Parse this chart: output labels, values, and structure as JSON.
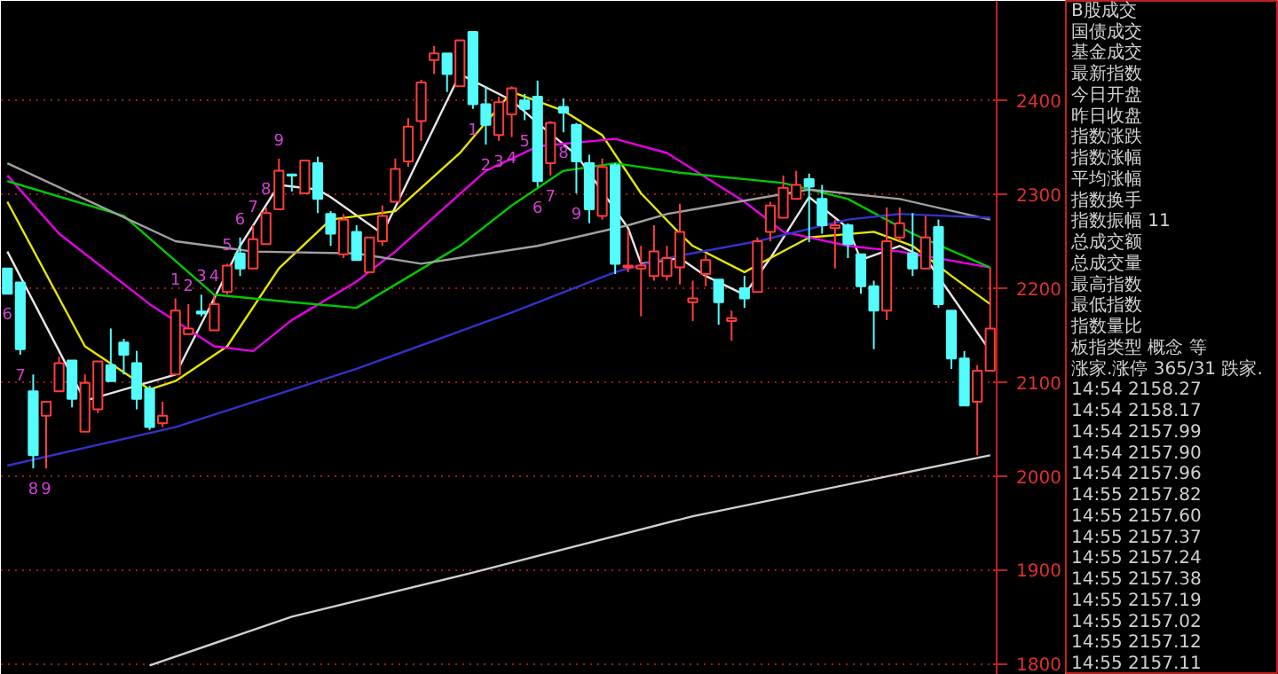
{
  "chart_data": [
    {
      "type": "candlestick",
      "categories": [
        null,
        null,
        null,
        null,
        null,
        null,
        null,
        null,
        null,
        null,
        null,
        null,
        null,
        null,
        null,
        null,
        null,
        null,
        null,
        null,
        null,
        null,
        null,
        null,
        null,
        null,
        null,
        null,
        null,
        null,
        null,
        null,
        null,
        null,
        null,
        null,
        null,
        null,
        null,
        null,
        null,
        null,
        null,
        null,
        null,
        null,
        null,
        null,
        null,
        null,
        null,
        null,
        null,
        null,
        null,
        null,
        null,
        null,
        null,
        null,
        null,
        null,
        null,
        null,
        null,
        null,
        null,
        null,
        null,
        null,
        null,
        null,
        null,
        null,
        null,
        null,
        null
      ],
      "ohlc": [
        [
          2221,
          2221,
          2194,
          2194
        ],
        [
          2206,
          2206,
          2129,
          2135
        ],
        [
          2090,
          2108,
          2008,
          2022
        ],
        [
          2064,
          2079,
          2008,
          2079
        ],
        [
          2090,
          2127,
          2090,
          2120
        ],
        [
          2123,
          2123,
          2073,
          2082
        ],
        [
          2047,
          2108,
          2047,
          2099
        ],
        [
          2071,
          2122,
          2067,
          2122
        ],
        [
          2118,
          2157,
          2101,
          2101
        ],
        [
          2142,
          2146,
          2108,
          2129
        ],
        [
          2120,
          2133,
          2071,
          2082
        ],
        [
          2093,
          2096,
          2049,
          2052
        ],
        [
          2056,
          2079,
          2052,
          2064
        ],
        [
          2108,
          2189,
          2108,
          2176
        ],
        [
          2151,
          2183,
          2151,
          2157
        ],
        [
          2175,
          2193,
          2170,
          2173
        ],
        [
          2155,
          2193,
          2155,
          2183
        ],
        [
          2196,
          2226,
          2193,
          2224
        ],
        [
          2237,
          2254,
          2213,
          2221
        ],
        [
          2221,
          2267,
          2221,
          2252
        ],
        [
          2247,
          2286,
          2247,
          2280
        ],
        [
          2284,
          2338,
          2284,
          2325
        ],
        [
          2321,
          2322,
          2303,
          2320
        ],
        [
          2301,
          2336,
          2301,
          2336
        ],
        [
          2333,
          2340,
          2280,
          2295
        ],
        [
          2279,
          2282,
          2245,
          2258
        ],
        [
          2236,
          2279,
          2232,
          2273
        ],
        [
          2260,
          2267,
          2230,
          2230
        ],
        [
          2217,
          2254,
          2217,
          2254
        ],
        [
          2250,
          2288,
          2245,
          2277
        ],
        [
          2292,
          2338,
          2292,
          2327
        ],
        [
          2335,
          2381,
          2329,
          2372
        ],
        [
          2378,
          2422,
          2357,
          2419
        ],
        [
          2443,
          2458,
          2428,
          2450
        ],
        [
          2450,
          2450,
          2409,
          2428
        ],
        [
          2415,
          2464,
          2415,
          2464
        ],
        [
          2473,
          2473,
          2391,
          2396
        ],
        [
          2396,
          2415,
          2353,
          2374
        ],
        [
          2363,
          2404,
          2357,
          2398
        ],
        [
          2385,
          2415,
          2361,
          2413
        ],
        [
          2400,
          2407,
          2379,
          2391
        ],
        [
          2404,
          2421,
          2308,
          2314
        ],
        [
          2333,
          2378,
          2320,
          2376
        ],
        [
          2393,
          2402,
          2366,
          2387
        ],
        [
          2374,
          2376,
          2301,
          2335
        ],
        [
          2333,
          2342,
          2269,
          2284
        ],
        [
          2277,
          2338,
          2273,
          2329
        ],
        [
          2331,
          2333,
          2215,
          2226
        ],
        [
          2222,
          2262,
          2217,
          2224
        ],
        [
          2221,
          2245,
          2170,
          2224
        ],
        [
          2213,
          2267,
          2208,
          2239
        ],
        [
          2213,
          2245,
          2208,
          2232
        ],
        [
          2222,
          2290,
          2204,
          2260
        ],
        [
          2185,
          2208,
          2165,
          2189
        ],
        [
          2215,
          2236,
          2202,
          2230
        ],
        [
          2209,
          2209,
          2161,
          2185
        ],
        [
          2165,
          2176,
          2144,
          2168
        ],
        [
          2200,
          2213,
          2179,
          2189
        ],
        [
          2196,
          2254,
          2196,
          2250
        ],
        [
          2260,
          2292,
          2250,
          2288
        ],
        [
          2275,
          2320,
          2275,
          2307
        ],
        [
          2295,
          2325,
          2295,
          2310
        ],
        [
          2316,
          2322,
          2249,
          2308
        ],
        [
          2295,
          2310,
          2258,
          2267
        ],
        [
          2264,
          2273,
          2221,
          2267
        ],
        [
          2267,
          2269,
          2232,
          2247
        ],
        [
          2236,
          2236,
          2194,
          2202
        ],
        [
          2202,
          2208,
          2135,
          2176
        ],
        [
          2176,
          2286,
          2166,
          2250
        ],
        [
          2254,
          2286,
          2250,
          2269
        ],
        [
          2237,
          2280,
          2213,
          2221
        ],
        [
          2221,
          2277,
          2221,
          2254
        ],
        [
          2265,
          2273,
          2179,
          2183
        ],
        [
          2176,
          2176,
          2114,
          2125
        ],
        [
          2125,
          2133,
          2075,
          2075
        ],
        [
          2079,
          2118,
          2022,
          2112
        ],
        [
          2112,
          2222,
          2112,
          2157
        ]
      ],
      "colors": [
        "#54fcfc",
        "#54fcfc",
        "#54fcfc",
        "#ff3c3c",
        "#ff3c3c",
        "#54fcfc",
        "#ff3c3c",
        "#ff3c3c",
        "#54fcfc",
        "#54fcfc",
        "#54fcfc",
        "#54fcfc",
        "#ff3c3c",
        "#ff3c3c",
        "#ff3c3c",
        "#54fcfc",
        "#ff3c3c",
        "#ff3c3c",
        "#54fcfc",
        "#ff3c3c",
        "#ff3c3c",
        "#ff3c3c",
        "#54fcfc",
        "#ff3c3c",
        "#54fcfc",
        "#54fcfc",
        "#ff3c3c",
        "#54fcfc",
        "#ff3c3c",
        "#ff3c3c",
        "#ff3c3c",
        "#ff3c3c",
        "#ff3c3c",
        "#ff3c3c",
        "#54fcfc",
        "#ff3c3c",
        "#54fcfc",
        "#54fcfc",
        "#ff3c3c",
        "#ff3c3c",
        "#54fcfc",
        "#54fcfc",
        "#ff3c3c",
        "#54fcfc",
        "#54fcfc",
        "#54fcfc",
        "#ff3c3c",
        "#54fcfc",
        "#ff3c3c",
        "#ff3c3c",
        "#ff3c3c",
        "#ff3c3c",
        "#ff3c3c",
        "#ff3c3c",
        "#ff3c3c",
        "#54fcfc",
        "#ff3c3c",
        "#54fcfc",
        "#ff3c3c",
        "#ff3c3c",
        "#ff3c3c",
        "#ff3c3c",
        "#54fcfc",
        "#54fcfc",
        "#ff3c3c",
        "#54fcfc",
        "#54fcfc",
        "#54fcfc",
        "#ff3c3c",
        "#ff3c3c",
        "#54fcfc",
        "#ff3c3c",
        "#54fcfc",
        "#54fcfc",
        "#54fcfc",
        "#ff3c3c",
        "#ff3c3c"
      ],
      "value_labels": [
        "6",
        "7",
        "8",
        "9",
        null,
        null,
        null,
        null,
        null,
        null,
        null,
        null,
        null,
        "1",
        "2",
        "3",
        "4",
        "5",
        "6",
        "7",
        "8",
        "9",
        null,
        null,
        null,
        null,
        null,
        null,
        null,
        null,
        null,
        null,
        null,
        null,
        null,
        null,
        "1",
        "2",
        "3",
        "4",
        "5",
        "6",
        "7",
        "8",
        "9",
        null,
        null,
        null,
        null,
        null,
        null,
        null,
        null,
        null,
        null,
        null,
        null,
        null,
        null,
        null,
        null,
        null,
        null,
        null,
        null,
        null,
        null,
        null,
        null,
        null,
        null,
        null,
        null,
        null,
        null,
        null,
        null
      ],
      "series": [
        {
          "type": "line",
          "color": "#e6e6e6",
          "values": [
            2239,
            null,
            null,
            null,
            null,
            null,
            2080,
            null,
            null,
            null,
            null,
            null,
            null,
            2108,
            null,
            null,
            2189,
            null,
            2245,
            null,
            null,
            2310,
            null,
            null,
            2305,
            2297,
            null,
            null,
            null,
            2258,
            null,
            null,
            null,
            null,
            null,
            2428,
            null,
            null,
            null,
            2400,
            null,
            2376,
            null,
            null,
            2342,
            null,
            null,
            null,
            2264,
            2226,
            null,
            null,
            2232,
            null,
            2213,
            null,
            null,
            2193,
            null,
            2232,
            null,
            null,
            2297,
            null,
            null,
            2264,
            2230,
            null,
            null,
            2245,
            null,
            2232,
            null,
            null,
            null,
            null,
            2133
          ]
        },
        {
          "type": "line",
          "color": "#e6e600",
          "values": [
            2292,
            null,
            null,
            null,
            null,
            null,
            2138,
            null,
            null,
            null,
            null,
            2092,
            null,
            2101,
            null,
            null,
            null,
            2138,
            null,
            null,
            null,
            2221,
            null,
            null,
            null,
            2273,
            null,
            null,
            null,
            null,
            2282,
            null,
            null,
            null,
            null,
            2344,
            null,
            null,
            null,
            2409,
            null,
            null,
            null,
            2389,
            null,
            null,
            2363,
            null,
            null,
            2301,
            null,
            null,
            2258,
            2245,
            null,
            null,
            null,
            2217,
            null,
            2232,
            null,
            null,
            2254,
            null,
            null,
            null,
            null,
            2260,
            null,
            null,
            2245,
            null,
            null,
            2213,
            null,
            null,
            2183
          ]
        },
        {
          "type": "line",
          "color": "#e600e6",
          "values": [
            2320,
            null,
            null,
            null,
            2258,
            null,
            null,
            null,
            null,
            null,
            null,
            2183,
            null,
            null,
            null,
            null,
            2138,
            null,
            null,
            2133,
            null,
            null,
            2166,
            null,
            null,
            null,
            null,
            2207,
            null,
            null,
            2239,
            null,
            null,
            null,
            null,
            null,
            null,
            2325,
            null,
            null,
            null,
            2351,
            null,
            null,
            null,
            null,
            null,
            2359,
            null,
            null,
            null,
            2344,
            null,
            null,
            null,
            null,
            null,
            2292,
            null,
            null,
            2260,
            null,
            null,
            null,
            null,
            2245,
            null,
            null,
            null,
            2239,
            null,
            null,
            null,
            null,
            null,
            null,
            2222
          ]
        },
        {
          "type": "line",
          "color": "#00c800",
          "values": [
            2314,
            null,
            null,
            null,
            null,
            null,
            null,
            null,
            null,
            2277,
            null,
            null,
            null,
            null,
            null,
            null,
            2193,
            null,
            null,
            null,
            null,
            null,
            2185,
            null,
            null,
            null,
            null,
            2179,
            null,
            null,
            null,
            null,
            null,
            null,
            null,
            2245,
            null,
            null,
            null,
            2288,
            null,
            null,
            null,
            2325,
            null,
            null,
            null,
            2333,
            null,
            null,
            null,
            null,
            2323,
            null,
            null,
            null,
            null,
            null,
            null,
            null,
            2312,
            null,
            null,
            null,
            null,
            2295,
            null,
            null,
            null,
            null,
            2258,
            null,
            null,
            null,
            null,
            null,
            2222
          ]
        },
        {
          "type": "line",
          "color": "#a0a0a0",
          "values": [
            2333,
            null,
            null,
            null,
            null,
            null,
            null,
            null,
            null,
            null,
            null,
            null,
            null,
            2250,
            null,
            null,
            null,
            null,
            null,
            2239,
            null,
            null,
            null,
            null,
            null,
            null,
            null,
            2237,
            null,
            null,
            null,
            null,
            2226,
            null,
            null,
            null,
            null,
            null,
            null,
            null,
            null,
            2245,
            null,
            null,
            null,
            null,
            null,
            null,
            2267,
            null,
            null,
            2279,
            null,
            null,
            null,
            null,
            null,
            null,
            null,
            null,
            null,
            null,
            2305,
            null,
            null,
            null,
            null,
            null,
            null,
            2295,
            null,
            null,
            null,
            null,
            null,
            null,
            2273
          ]
        },
        {
          "type": "line",
          "color": "#3232c8",
          "values": [
            2011,
            null,
            null,
            null,
            null,
            null,
            null,
            null,
            null,
            null,
            null,
            null,
            null,
            2052,
            null,
            null,
            null,
            null,
            null,
            null,
            null,
            null,
            null,
            null,
            null,
            null,
            null,
            2114,
            null,
            null,
            null,
            null,
            null,
            null,
            null,
            null,
            null,
            null,
            null,
            2174,
            null,
            null,
            null,
            null,
            null,
            null,
            null,
            2217,
            null,
            null,
            null,
            2232,
            null,
            null,
            null,
            null,
            null,
            null,
            2250,
            null,
            null,
            null,
            null,
            null,
            null,
            2273,
            null,
            null,
            null,
            2279,
            null,
            null,
            null,
            null,
            null,
            null,
            2275
          ]
        },
        {
          "type": "line",
          "color": "#d0d0d0",
          "values": [
            null,
            null,
            null,
            null,
            null,
            null,
            null,
            null,
            null,
            null,
            null,
            1798,
            null,
            null,
            null,
            null,
            null,
            null,
            null,
            null,
            null,
            null,
            1850,
            null,
            null,
            null,
            null,
            null,
            null,
            null,
            null,
            null,
            null,
            null,
            null,
            null,
            1897,
            null,
            null,
            null,
            null,
            null,
            null,
            null,
            null,
            null,
            null,
            null,
            null,
            null,
            null,
            null,
            null,
            1957,
            null,
            null,
            null,
            null,
            null,
            null,
            null,
            null,
            null,
            null,
            null,
            null,
            null,
            null,
            null,
            null,
            null,
            null,
            null,
            null,
            null,
            null,
            2022
          ]
        }
      ],
      "ylim": [
        1788,
        2506
      ],
      "yticks": [
        1800,
        1900,
        2000,
        2100,
        2200,
        2300,
        2400
      ],
      "grid": "y",
      "tick_labels": "y"
    },
    {
      "type": "other",
      "annotations": [
        "B股成交",
        "国债成交",
        "基金成交",
        "最新指数",
        "今日开盘",
        "昨日收盘",
        "指数涨跌",
        "指数涨幅",
        "平均涨幅",
        "指数换手",
        "指数振幅 11",
        "总成交额",
        "总成交量",
        "最高指数",
        "最低指数",
        "指数量比",
        "板指类型 概念 等",
        "涨家.涨停 365/31 跌家.",
        "14:54 2158.27",
        "14:54 2158.17",
        "14:54 2157.99",
        "14:54 2157.90",
        "14:54 2157.96",
        "14:55 2157.82",
        "14:55 2157.60",
        "14:55 2157.37",
        "14:55 2157.24",
        "14:55 2157.38",
        "14:55 2157.19",
        "14:55 2157.02",
        "14:55 2157.12",
        "14:55 2157.11"
      ]
    }
  ]
}
